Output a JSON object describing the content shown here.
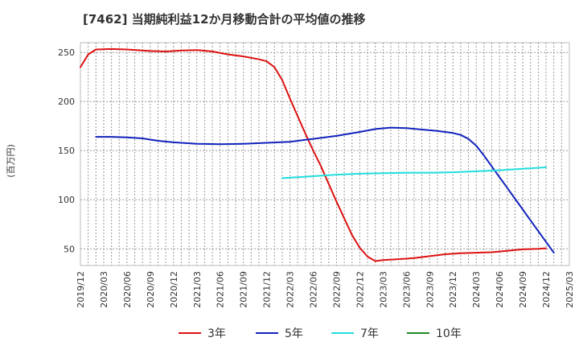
{
  "chart_data": {
    "type": "line",
    "title": "[7462]  当期純利益12か月移動合計の平均値の推移",
    "xlabel": "",
    "ylabel": "(百万円)",
    "ylim": [
      33,
      260
    ],
    "yticks": [
      50,
      100,
      150,
      200,
      250
    ],
    "xticks": [
      "2019/12",
      "2020/03",
      "2020/06",
      "2020/09",
      "2020/12",
      "2021/03",
      "2021/06",
      "2021/09",
      "2021/12",
      "2022/03",
      "2022/06",
      "2022/09",
      "2022/12",
      "2023/03",
      "2023/06",
      "2023/09",
      "2023/12",
      "2024/03",
      "2024/06",
      "2024/09",
      "2024/12",
      "2025/03"
    ],
    "grid": true,
    "legend_position": "bottom",
    "series": [
      {
        "name": "3年",
        "color": "#dd1111",
        "points": [
          [
            "2019/12",
            235
          ],
          [
            "2020/01",
            248
          ],
          [
            "2020/02",
            253
          ],
          [
            "2020/04",
            253.5
          ],
          [
            "2020/06",
            253
          ],
          [
            "2020/09",
            251.5
          ],
          [
            "2020/11",
            251
          ],
          [
            "2021/01",
            252
          ],
          [
            "2021/03",
            252.5
          ],
          [
            "2021/05",
            251
          ],
          [
            "2021/07",
            248
          ],
          [
            "2021/09",
            246
          ],
          [
            "2021/11",
            243
          ],
          [
            "2021/12",
            241
          ],
          [
            "2022/01",
            235
          ],
          [
            "2022/02",
            222
          ],
          [
            "2022/03",
            203
          ],
          [
            "2022/04",
            185
          ],
          [
            "2022/05",
            167
          ],
          [
            "2022/06",
            150
          ],
          [
            "2022/07",
            134
          ],
          [
            "2022/08",
            116
          ],
          [
            "2022/09",
            98
          ],
          [
            "2022/10",
            81
          ],
          [
            "2022/11",
            64
          ],
          [
            "2022/12",
            51
          ],
          [
            "2023/01",
            42
          ],
          [
            "2023/02",
            37.5
          ],
          [
            "2023/03",
            38.5
          ],
          [
            "2023/05",
            39.5
          ],
          [
            "2023/07",
            40.5
          ],
          [
            "2023/09",
            42.5
          ],
          [
            "2023/11",
            44.5
          ],
          [
            "2024/01",
            45.5
          ],
          [
            "2024/03",
            46
          ],
          [
            "2024/05",
            46.5
          ],
          [
            "2024/07",
            48
          ],
          [
            "2024/09",
            49.5
          ],
          [
            "2024/11",
            50
          ],
          [
            "2024/12",
            50.5
          ]
        ]
      },
      {
        "name": "5年",
        "color": "#1122bb",
        "points": [
          [
            "2020/02",
            164
          ],
          [
            "2020/04",
            164
          ],
          [
            "2020/06",
            163.5
          ],
          [
            "2020/08",
            162.5
          ],
          [
            "2020/10",
            160
          ],
          [
            "2020/12",
            158.5
          ],
          [
            "2021/03",
            157
          ],
          [
            "2021/06",
            156.5
          ],
          [
            "2021/09",
            157
          ],
          [
            "2021/12",
            158
          ],
          [
            "2022/03",
            159
          ],
          [
            "2022/06",
            162
          ],
          [
            "2022/09",
            165
          ],
          [
            "2022/12",
            169
          ],
          [
            "2023/02",
            172
          ],
          [
            "2023/04",
            173.5
          ],
          [
            "2023/06",
            173
          ],
          [
            "2023/08",
            171.5
          ],
          [
            "2023/10",
            170
          ],
          [
            "2023/12",
            168
          ],
          [
            "2024/01",
            166
          ],
          [
            "2024/02",
            162
          ],
          [
            "2024/03",
            155
          ],
          [
            "2024/04",
            145
          ],
          [
            "2024/05",
            134
          ],
          [
            "2024/06",
            123
          ],
          [
            "2024/07",
            112
          ],
          [
            "2024/08",
            101
          ],
          [
            "2024/09",
            90
          ],
          [
            "2024/10",
            79
          ],
          [
            "2024/11",
            68
          ],
          [
            "2024/12",
            57
          ],
          [
            "2025/01",
            46
          ]
        ]
      },
      {
        "name": "7年",
        "color": "#22dddd",
        "points": [
          [
            "2022/02",
            122
          ],
          [
            "2022/04",
            123
          ],
          [
            "2022/06",
            124
          ],
          [
            "2022/09",
            125.5
          ],
          [
            "2022/12",
            126.5
          ],
          [
            "2023/03",
            127
          ],
          [
            "2023/06",
            127.5
          ],
          [
            "2023/09",
            127.5
          ],
          [
            "2023/12",
            128
          ],
          [
            "2024/03",
            129
          ],
          [
            "2024/06",
            130
          ],
          [
            "2024/09",
            131.5
          ],
          [
            "2024/12",
            133
          ]
        ]
      },
      {
        "name": "10年",
        "color": "#228822",
        "points": []
      }
    ]
  }
}
